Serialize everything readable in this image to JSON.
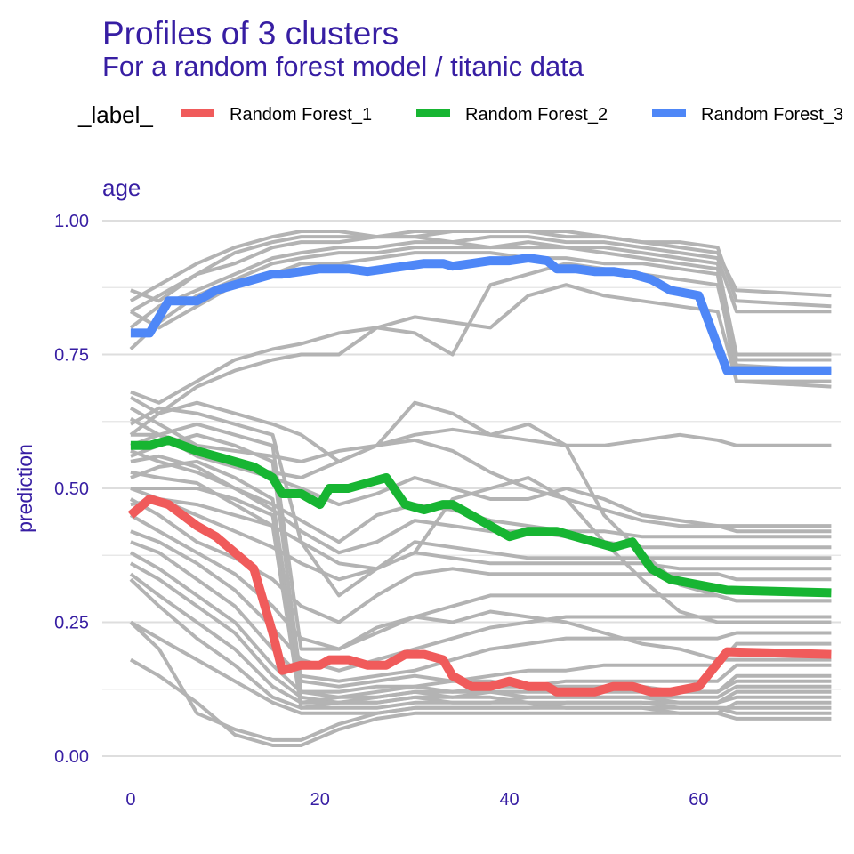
{
  "chart_data": {
    "type": "line",
    "title": "Profiles of 3 clusters",
    "subtitle": "For a random forest model / titanic data",
    "legend_title": "_label_",
    "legend_position": "top-left",
    "facet_label": "age",
    "xlabel": "",
    "ylabel": "prediction",
    "xlim": [
      -3,
      75
    ],
    "ylim": [
      0,
      1
    ],
    "x_ticks": [
      0,
      20,
      40,
      60
    ],
    "y_ticks": [
      "0.00",
      "0.25",
      "0.50",
      "0.75",
      "1.00"
    ],
    "grid": true,
    "x": [
      0,
      2,
      4,
      7,
      9,
      11,
      13,
      15,
      16,
      18,
      20,
      21,
      23,
      25,
      27,
      29,
      31,
      33,
      34,
      36,
      38,
      40,
      42,
      44,
      45,
      47,
      49,
      51,
      53,
      55,
      57,
      60,
      63,
      74
    ],
    "series": [
      {
        "name": "Random Forest_1",
        "color": "#f05b5b",
        "values": [
          0.45,
          0.48,
          0.47,
          0.43,
          0.41,
          0.38,
          0.35,
          0.23,
          0.16,
          0.17,
          0.17,
          0.18,
          0.18,
          0.17,
          0.17,
          0.19,
          0.19,
          0.18,
          0.15,
          0.13,
          0.13,
          0.14,
          0.13,
          0.13,
          0.12,
          0.12,
          0.12,
          0.13,
          0.13,
          0.12,
          0.12,
          0.13,
          0.195,
          0.19
        ]
      },
      {
        "name": "Random Forest_2",
        "color": "#17b532",
        "values": [
          0.58,
          0.58,
          0.59,
          0.57,
          0.56,
          0.55,
          0.54,
          0.52,
          0.49,
          0.49,
          0.47,
          0.5,
          0.5,
          0.51,
          0.52,
          0.47,
          0.46,
          0.47,
          0.47,
          0.45,
          0.43,
          0.41,
          0.42,
          0.42,
          0.42,
          0.41,
          0.4,
          0.39,
          0.4,
          0.35,
          0.33,
          0.32,
          0.31,
          0.305
        ]
      },
      {
        "name": "Random Forest_3",
        "color": "#4e87f7",
        "values": [
          0.79,
          0.79,
          0.85,
          0.85,
          0.87,
          0.88,
          0.89,
          0.9,
          0.9,
          0.905,
          0.91,
          0.91,
          0.91,
          0.905,
          0.91,
          0.915,
          0.92,
          0.92,
          0.915,
          0.92,
          0.925,
          0.925,
          0.93,
          0.925,
          0.91,
          0.91,
          0.905,
          0.905,
          0.9,
          0.89,
          0.87,
          0.86,
          0.72,
          0.72
        ]
      }
    ],
    "background_profiles": {
      "color": "#b3b3b3",
      "x": [
        0,
        3,
        7,
        11,
        15,
        18,
        22,
        26,
        30,
        34,
        38,
        42,
        46,
        50,
        54,
        58,
        62,
        64,
        74
      ],
      "lines": [
        [
          0.87,
          0.85,
          0.9,
          0.94,
          0.96,
          0.97,
          0.97,
          0.97,
          0.98,
          0.98,
          0.98,
          0.98,
          0.97,
          0.97,
          0.96,
          0.95,
          0.94,
          0.87,
          0.86
        ],
        [
          0.85,
          0.88,
          0.92,
          0.95,
          0.97,
          0.98,
          0.98,
          0.97,
          0.97,
          0.98,
          0.98,
          0.98,
          0.98,
          0.97,
          0.96,
          0.96,
          0.95,
          0.85,
          0.84
        ],
        [
          0.83,
          0.86,
          0.9,
          0.92,
          0.95,
          0.96,
          0.96,
          0.97,
          0.97,
          0.96,
          0.97,
          0.97,
          0.96,
          0.96,
          0.95,
          0.94,
          0.93,
          0.83,
          0.83
        ],
        [
          0.8,
          0.84,
          0.87,
          0.9,
          0.93,
          0.94,
          0.95,
          0.95,
          0.96,
          0.96,
          0.95,
          0.96,
          0.95,
          0.95,
          0.94,
          0.93,
          0.92,
          0.75,
          0.75
        ],
        [
          0.76,
          0.81,
          0.86,
          0.89,
          0.92,
          0.93,
          0.94,
          0.94,
          0.95,
          0.95,
          0.95,
          0.95,
          0.95,
          0.94,
          0.93,
          0.92,
          0.91,
          0.74,
          0.74
        ],
        [
          0.83,
          0.8,
          0.84,
          0.88,
          0.9,
          0.92,
          0.92,
          0.93,
          0.94,
          0.94,
          0.94,
          0.93,
          0.93,
          0.92,
          0.92,
          0.91,
          0.9,
          0.7,
          0.69
        ],
        [
          0.68,
          0.66,
          0.7,
          0.74,
          0.76,
          0.77,
          0.79,
          0.8,
          0.79,
          0.75,
          0.88,
          0.9,
          0.92,
          0.91,
          0.9,
          0.89,
          0.88,
          0.73,
          0.72
        ],
        [
          0.67,
          0.64,
          0.69,
          0.72,
          0.74,
          0.75,
          0.75,
          0.8,
          0.82,
          0.81,
          0.8,
          0.86,
          0.88,
          0.86,
          0.85,
          0.84,
          0.83,
          0.7,
          0.7
        ],
        [
          0.65,
          0.62,
          0.58,
          0.57,
          0.56,
          0.55,
          0.57,
          0.58,
          0.6,
          0.61,
          0.6,
          0.59,
          0.58,
          0.58,
          0.59,
          0.6,
          0.59,
          0.58,
          0.58
        ],
        [
          0.63,
          0.6,
          0.56,
          0.54,
          0.52,
          0.5,
          0.47,
          0.49,
          0.52,
          0.5,
          0.48,
          0.48,
          0.5,
          0.48,
          0.45,
          0.44,
          0.43,
          0.43,
          0.43
        ],
        [
          0.6,
          0.6,
          0.58,
          0.54,
          0.53,
          0.52,
          0.55,
          0.58,
          0.59,
          0.57,
          0.53,
          0.5,
          0.48,
          0.46,
          0.44,
          0.43,
          0.43,
          0.42,
          0.42
        ],
        [
          0.57,
          0.55,
          0.53,
          0.5,
          0.47,
          0.44,
          0.4,
          0.45,
          0.47,
          0.46,
          0.44,
          0.43,
          0.42,
          0.42,
          0.41,
          0.41,
          0.41,
          0.41,
          0.41
        ],
        [
          0.55,
          0.56,
          0.54,
          0.5,
          0.46,
          0.42,
          0.38,
          0.4,
          0.44,
          0.43,
          0.42,
          0.42,
          0.41,
          0.4,
          0.39,
          0.39,
          0.39,
          0.39,
          0.39
        ],
        [
          0.53,
          0.52,
          0.51,
          0.47,
          0.43,
          0.4,
          0.36,
          0.35,
          0.4,
          0.39,
          0.38,
          0.37,
          0.37,
          0.37,
          0.37,
          0.37,
          0.37,
          0.37,
          0.37
        ],
        [
          0.5,
          0.48,
          0.45,
          0.42,
          0.39,
          0.36,
          0.33,
          0.35,
          0.38,
          0.37,
          0.36,
          0.36,
          0.36,
          0.36,
          0.36,
          0.35,
          0.35,
          0.35,
          0.35
        ],
        [
          0.48,
          0.45,
          0.4,
          0.37,
          0.33,
          0.28,
          0.25,
          0.3,
          0.34,
          0.35,
          0.34,
          0.34,
          0.34,
          0.34,
          0.34,
          0.34,
          0.34,
          0.33,
          0.33
        ],
        [
          0.45,
          0.42,
          0.38,
          0.34,
          0.28,
          0.22,
          0.2,
          0.23,
          0.26,
          0.28,
          0.3,
          0.3,
          0.3,
          0.3,
          0.3,
          0.3,
          0.3,
          0.29,
          0.29
        ],
        [
          0.42,
          0.4,
          0.36,
          0.31,
          0.24,
          0.18,
          0.16,
          0.18,
          0.2,
          0.22,
          0.24,
          0.25,
          0.26,
          0.26,
          0.26,
          0.26,
          0.26,
          0.26,
          0.26
        ],
        [
          0.4,
          0.38,
          0.33,
          0.28,
          0.2,
          0.15,
          0.14,
          0.15,
          0.16,
          0.18,
          0.2,
          0.21,
          0.22,
          0.22,
          0.22,
          0.22,
          0.22,
          0.23,
          0.23
        ],
        [
          0.38,
          0.35,
          0.3,
          0.25,
          0.17,
          0.12,
          0.11,
          0.12,
          0.13,
          0.14,
          0.15,
          0.16,
          0.16,
          0.17,
          0.17,
          0.17,
          0.17,
          0.21,
          0.21
        ],
        [
          0.36,
          0.33,
          0.28,
          0.23,
          0.15,
          0.11,
          0.1,
          0.11,
          0.12,
          0.12,
          0.13,
          0.13,
          0.14,
          0.14,
          0.14,
          0.14,
          0.14,
          0.17,
          0.17
        ],
        [
          0.34,
          0.3,
          0.25,
          0.2,
          0.13,
          0.1,
          0.1,
          0.1,
          0.11,
          0.11,
          0.12,
          0.12,
          0.12,
          0.12,
          0.12,
          0.12,
          0.12,
          0.15,
          0.15
        ],
        [
          0.33,
          0.28,
          0.22,
          0.17,
          0.11,
          0.09,
          0.09,
          0.09,
          0.1,
          0.1,
          0.1,
          0.11,
          0.11,
          0.11,
          0.11,
          0.11,
          0.11,
          0.13,
          0.13
        ],
        [
          0.25,
          0.22,
          0.18,
          0.14,
          0.1,
          0.08,
          0.08,
          0.08,
          0.09,
          0.09,
          0.09,
          0.09,
          0.1,
          0.1,
          0.1,
          0.1,
          0.1,
          0.12,
          0.12
        ],
        [
          0.18,
          0.15,
          0.1,
          0.04,
          0.02,
          0.02,
          0.05,
          0.07,
          0.08,
          0.08,
          0.08,
          0.08,
          0.08,
          0.08,
          0.08,
          0.08,
          0.08,
          0.1,
          0.1
        ],
        [
          0.25,
          0.2,
          0.08,
          0.05,
          0.03,
          0.03,
          0.06,
          0.08,
          0.09,
          0.09,
          0.09,
          0.09,
          0.09,
          0.09,
          0.09,
          0.09,
          0.09,
          0.09,
          0.09
        ],
        [
          0.6,
          0.64,
          0.66,
          0.64,
          0.62,
          0.6,
          0.55,
          0.58,
          0.66,
          0.64,
          0.6,
          0.62,
          0.58,
          0.45,
          0.38,
          0.32,
          0.3,
          0.29,
          0.29
        ],
        [
          0.62,
          0.65,
          0.64,
          0.62,
          0.6,
          0.4,
          0.3,
          0.35,
          0.38,
          0.48,
          0.5,
          0.52,
          0.48,
          0.4,
          0.33,
          0.27,
          0.25,
          0.25,
          0.25
        ],
        [
          0.58,
          0.6,
          0.62,
          0.6,
          0.58,
          0.2,
          0.2,
          0.24,
          0.26,
          0.25,
          0.27,
          0.26,
          0.25,
          0.23,
          0.21,
          0.2,
          0.18,
          0.18,
          0.18
        ],
        [
          0.56,
          0.58,
          0.6,
          0.58,
          0.55,
          0.14,
          0.13,
          0.14,
          0.15,
          0.14,
          0.14,
          0.13,
          0.13,
          0.13,
          0.13,
          0.12,
          0.12,
          0.14,
          0.14
        ],
        [
          0.52,
          0.54,
          0.55,
          0.52,
          0.48,
          0.12,
          0.12,
          0.13,
          0.13,
          0.12,
          0.12,
          0.11,
          0.11,
          0.11,
          0.11,
          0.1,
          0.1,
          0.11,
          0.11
        ],
        [
          0.5,
          0.5,
          0.5,
          0.48,
          0.45,
          0.1,
          0.11,
          0.11,
          0.12,
          0.11,
          0.11,
          0.1,
          0.1,
          0.1,
          0.1,
          0.09,
          0.09,
          0.08,
          0.08
        ],
        [
          0.47,
          0.48,
          0.47,
          0.45,
          0.43,
          0.09,
          0.1,
          0.1,
          0.11,
          0.1,
          0.1,
          0.1,
          0.09,
          0.09,
          0.09,
          0.08,
          0.08,
          0.07,
          0.07
        ]
      ]
    }
  }
}
